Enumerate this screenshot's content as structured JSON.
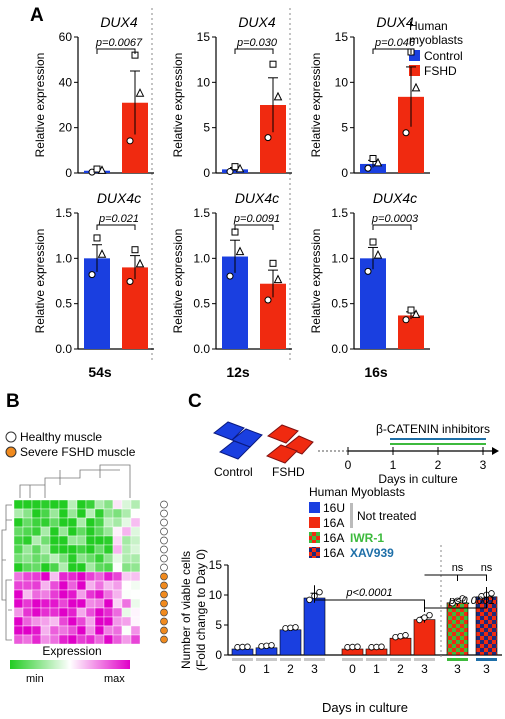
{
  "colors": {
    "control": "#1a3fe0",
    "fshd": "#f02a10",
    "healthy_dot": "#ffffff",
    "severe_dot": "#f08a1e",
    "iwr_green": "#3dba3d",
    "xav_navy": "#1e2a7a",
    "heat_min": "#22cc22",
    "heat_mid": "#ffffff",
    "heat_max": "#e000c8"
  },
  "panels": {
    "a": "A",
    "b": "B",
    "c": "C"
  },
  "legend_a": {
    "title_line1": "Human",
    "title_line2": "myoblasts",
    "control": "Control",
    "fshd": "FSHD"
  },
  "legend_b": {
    "healthy": "Healthy muscle",
    "severe": "Severe FSHD muscle",
    "expression": "Expression",
    "min": "min",
    "max": "max"
  },
  "schematic": {
    "control": "Control",
    "fshd": "FSHD",
    "inhibitors": "β-CATENIN inhibitors",
    "days_label": "Days in culture",
    "ticks": [
      "0",
      "1",
      "2",
      "3"
    ]
  },
  "legend_c": {
    "title": "Human Myoblasts",
    "items": [
      {
        "code": "16U",
        "label": "Not treated"
      },
      {
        "code": "16A",
        "label": ""
      },
      {
        "code": "16A",
        "label": "IWR-1"
      },
      {
        "code": "16A",
        "label": "XAV939"
      }
    ]
  },
  "chart_data": [
    {
      "type": "bar",
      "panel": "A",
      "title": "DUX4",
      "column": "54s",
      "ylabel": "Relative expression",
      "ylim": [
        0,
        60
      ],
      "yticks": [
        "0",
        "20",
        "40",
        "60"
      ],
      "categories": [
        "Control",
        "FSHD"
      ],
      "values": [
        1,
        31
      ],
      "errors": [
        0.5,
        14
      ],
      "pvalue": "p=0.0067"
    },
    {
      "type": "bar",
      "panel": "A",
      "title": "DUX4",
      "column": "12s",
      "ylabel": "Relative expression",
      "ylim": [
        0,
        15
      ],
      "yticks": [
        "0",
        "5",
        "10",
        "15"
      ],
      "categories": [
        "Control",
        "FSHD"
      ],
      "values": [
        0.4,
        7.5
      ],
      "errors": [
        0.2,
        3
      ],
      "pvalue": "p=0.030"
    },
    {
      "type": "bar",
      "panel": "A",
      "title": "DUX4",
      "column": "16s",
      "ylabel": "Relative expression",
      "ylim": [
        0,
        15
      ],
      "yticks": [
        "0",
        "5",
        "10",
        "15"
      ],
      "categories": [
        "Control",
        "FSHD"
      ],
      "values": [
        1,
        8.4
      ],
      "errors": [
        0.4,
        3.3
      ],
      "pvalue": "p=0.046"
    },
    {
      "type": "bar",
      "panel": "A",
      "title": "DUX4c",
      "column": "54s",
      "ylabel": "Relative expression",
      "ylim": [
        0,
        1.5
      ],
      "yticks": [
        "0.0",
        "0.5",
        "1.0",
        "1.5"
      ],
      "categories": [
        "Control",
        "FSHD"
      ],
      "values": [
        1.0,
        0.9
      ],
      "errors": [
        0.15,
        0.13
      ],
      "pvalue": "p=0.021"
    },
    {
      "type": "bar",
      "panel": "A",
      "title": "DUX4c",
      "column": "12s",
      "ylabel": "Relative expression",
      "ylim": [
        0,
        1.5
      ],
      "yticks": [
        "0.0",
        "0.5",
        "1.0",
        "1.5"
      ],
      "categories": [
        "Control",
        "FSHD"
      ],
      "values": [
        1.02,
        0.72
      ],
      "errors": [
        0.18,
        0.15
      ],
      "pvalue": "p=0.0091"
    },
    {
      "type": "bar",
      "panel": "A",
      "title": "DUX4c",
      "column": "16s",
      "ylabel": "Relative expression",
      "ylim": [
        0,
        1.5
      ],
      "yticks": [
        "0.0",
        "0.5",
        "1.0",
        "1.5"
      ],
      "categories": [
        "Control",
        "FSHD"
      ],
      "values": [
        1.0,
        0.37
      ],
      "errors": [
        0.12,
        0.04
      ],
      "pvalue": "p=0.0003"
    },
    {
      "type": "heatmap",
      "panel": "B",
      "rows": 16,
      "cols": 14,
      "row_groups": [
        "healthy",
        "healthy",
        "healthy",
        "healthy",
        "healthy",
        "healthy",
        "healthy",
        "healthy",
        "severe",
        "severe",
        "severe",
        "severe",
        "severe",
        "severe",
        "severe",
        "severe"
      ]
    },
    {
      "type": "bar",
      "panel": "C",
      "ylabel_line1": "Number of viable cells",
      "ylabel_line2": "(Fold change to Day 0)",
      "xlabel": "Days in culture",
      "ylim": [
        0,
        15
      ],
      "yticks": [
        "0",
        "5",
        "10",
        "15"
      ],
      "groups": [
        {
          "name": "16U",
          "days": [
            "0",
            "1",
            "2",
            "3"
          ],
          "values": [
            1.0,
            1.2,
            4.2,
            9.5
          ],
          "errors": [
            0.05,
            0.1,
            0.1,
            0.8
          ]
        },
        {
          "name": "16A",
          "days": [
            "0",
            "1",
            "2",
            "3"
          ],
          "values": [
            1.0,
            1.0,
            2.8,
            5.9
          ],
          "errors": [
            0.05,
            0.05,
            0.2,
            0.5
          ]
        },
        {
          "name": "16A IWR-1",
          "days": [
            "3"
          ],
          "values": [
            8.7
          ],
          "errors": [
            0.5
          ]
        },
        {
          "name": "16A XAV939",
          "days": [
            "3"
          ],
          "values": [
            9.7
          ],
          "errors": [
            0.3
          ]
        }
      ],
      "annotations": [
        "p<0.0001",
        "p<0.0001",
        "ns",
        "ns"
      ]
    }
  ]
}
